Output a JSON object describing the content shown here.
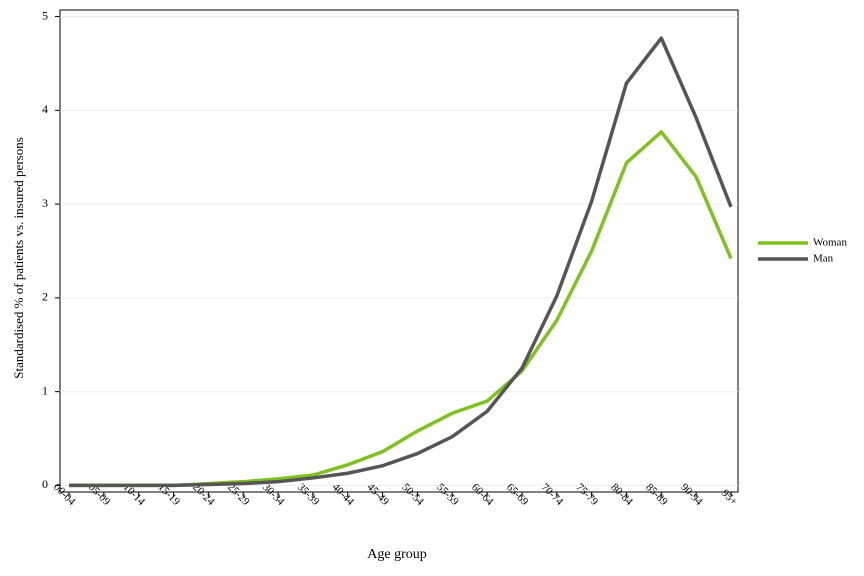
{
  "chart_data": {
    "type": "line",
    "x_label": "Age group",
    "y_label": "Standardised % of patients vs. insured persons",
    "categories": [
      "00-04",
      "05-09",
      "10-14",
      "15-19",
      "20-24",
      "25-29",
      "30-34",
      "35-39",
      "40-44",
      "45-49",
      "50-54",
      "55-59",
      "60-64",
      "65-69",
      "70-74",
      "75-79",
      "80-84",
      "85-89",
      "90-94",
      "95+"
    ],
    "series": [
      {
        "name": "Woman",
        "color": "#7dc21e",
        "values": [
          0,
          0,
          0,
          0,
          0.02,
          0.04,
          0.07,
          0.11,
          0.22,
          0.36,
          0.58,
          0.77,
          0.9,
          1.22,
          1.76,
          2.5,
          3.44,
          3.77,
          3.29,
          2.42
        ]
      },
      {
        "name": "Man",
        "color": "#555555",
        "values": [
          0,
          0,
          0,
          0,
          0.01,
          0.02,
          0.04,
          0.08,
          0.13,
          0.21,
          0.34,
          0.52,
          0.79,
          1.25,
          2.02,
          3.03,
          4.29,
          4.77,
          3.92,
          2.97
        ]
      }
    ],
    "ylim": [
      -0.07,
      5.07
    ],
    "yticks": [
      0,
      1,
      2,
      3,
      4,
      5
    ],
    "grid": true,
    "legend": "right"
  }
}
